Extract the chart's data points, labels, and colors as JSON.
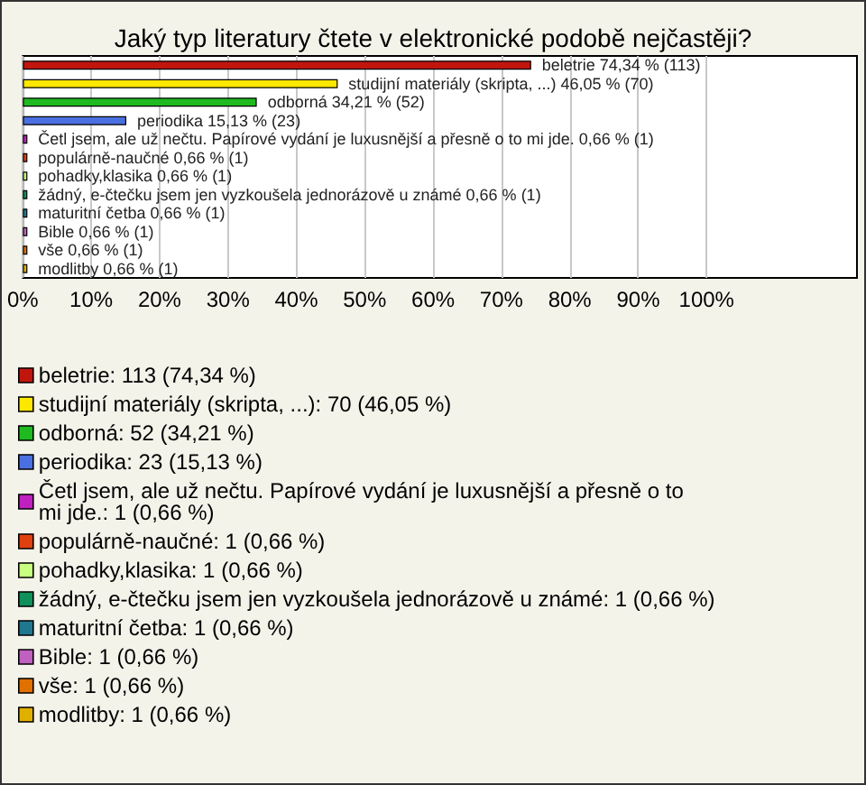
{
  "chart_data": {
    "type": "bar",
    "orientation": "horizontal",
    "stacked": true,
    "title": "Jaký typ literatury čtete v elektronické podobě nejčastěji?",
    "categories": [
      null,
      null,
      null,
      null,
      null,
      null,
      null,
      null,
      null,
      null,
      null,
      null
    ],
    "xlim": [
      0,
      122
    ],
    "xticks": [
      {
        "value": 0,
        "label": "0%"
      },
      {
        "value": 10,
        "label": "10%"
      },
      {
        "value": 20,
        "label": "20%"
      },
      {
        "value": 30,
        "label": "30%"
      },
      {
        "value": 40,
        "label": "40%"
      },
      {
        "value": 50,
        "label": "50%"
      },
      {
        "value": 60,
        "label": "60%"
      },
      {
        "value": 70,
        "label": "70%"
      },
      {
        "value": 80,
        "label": "80%"
      },
      {
        "value": 90,
        "label": "90%"
      },
      {
        "value": 100,
        "label": "100%"
      }
    ],
    "grid": "x",
    "legend": "bottom",
    "tick_labels": "x",
    "series": [
      {
        "name": "beletrie: 113 (74,34 %)",
        "color": "#c0160e",
        "values": [
          74.34,
          null,
          null,
          null,
          null,
          null,
          null,
          null,
          null,
          null,
          null,
          null
        ],
        "value_labels": [
          "beletrie 74,34 % (113)",
          null,
          null,
          null,
          null,
          null,
          null,
          null,
          null,
          null,
          null,
          null
        ]
      },
      {
        "name": "studijní materiály (skripta, ...): 70 (46,05 %)",
        "color": "#ffe800",
        "values": [
          null,
          46.05,
          null,
          null,
          null,
          null,
          null,
          null,
          null,
          null,
          null,
          null
        ],
        "value_labels": [
          null,
          "studijní materiály (skripta, ...) 46,05 % (70)",
          null,
          null,
          null,
          null,
          null,
          null,
          null,
          null,
          null,
          null
        ]
      },
      {
        "name": "odborná: 52 (34,21 %)",
        "color": "#1fba1f",
        "values": [
          null,
          null,
          34.21,
          null,
          null,
          null,
          null,
          null,
          null,
          null,
          null,
          null
        ],
        "value_labels": [
          null,
          null,
          "odborná 34,21 % (52)",
          null,
          null,
          null,
          null,
          null,
          null,
          null,
          null,
          null
        ]
      },
      {
        "name": "periodika: 23 (15,13 %)",
        "color": "#4a6fe0",
        "values": [
          null,
          null,
          null,
          15.13,
          null,
          null,
          null,
          null,
          null,
          null,
          null,
          null
        ],
        "value_labels": [
          null,
          null,
          null,
          "periodika 15,13 % (23)",
          null,
          null,
          null,
          null,
          null,
          null,
          null,
          null
        ]
      },
      {
        "name": "Četl jsem, ale už nečtu. Papírové vydání je luxusnější a přesně o to mi jde.: 1 (0,66 %)",
        "color": "#c020c0",
        "values": [
          null,
          null,
          null,
          null,
          0.66,
          null,
          null,
          null,
          null,
          null,
          null,
          null
        ],
        "value_labels": [
          null,
          null,
          null,
          null,
          "Četl jsem, ale už nečtu. Papírové vydání je luxusnější a přesně o to mi jde. 0,66 % (1)",
          null,
          null,
          null,
          null,
          null,
          null,
          null
        ]
      },
      {
        "name": "populárně-naučné: 1 (0,66 %)",
        "color": "#e04010",
        "values": [
          null,
          null,
          null,
          null,
          null,
          0.66,
          null,
          null,
          null,
          null,
          null,
          null
        ],
        "value_labels": [
          null,
          null,
          null,
          null,
          null,
          "populárně-naučné 0,66 % (1)",
          null,
          null,
          null,
          null,
          null,
          null
        ]
      },
      {
        "name": "pohadky,klasika: 1 (0,66 %)",
        "color": "#c8ff80",
        "values": [
          null,
          null,
          null,
          null,
          null,
          null,
          0.66,
          null,
          null,
          null,
          null,
          null
        ],
        "value_labels": [
          null,
          null,
          null,
          null,
          null,
          null,
          "pohadky,klasika 0,66 % (1)",
          null,
          null,
          null,
          null,
          null
        ]
      },
      {
        "name": "žádný, e-čtečku jsem jen vyzkoušela jednorázově u známé: 1 (0,66 %)",
        "color": "#10905a",
        "values": [
          null,
          null,
          null,
          null,
          null,
          null,
          null,
          0.66,
          null,
          null,
          null,
          null
        ],
        "value_labels": [
          null,
          null,
          null,
          null,
          null,
          null,
          null,
          "žádný, e-čtečku jsem jen vyzkoušela jednorázově u známé 0,66 % (1)",
          null,
          null,
          null,
          null
        ]
      },
      {
        "name": "maturitní četba: 1 (0,66 %)",
        "color": "#207890",
        "values": [
          null,
          null,
          null,
          null,
          null,
          null,
          null,
          null,
          0.66,
          null,
          null,
          null
        ],
        "value_labels": [
          null,
          null,
          null,
          null,
          null,
          null,
          null,
          null,
          "maturitní četba 0,66 % (1)",
          null,
          null,
          null
        ]
      },
      {
        "name": "Bible: 1 (0,66 %)",
        "color": "#c060c0",
        "values": [
          null,
          null,
          null,
          null,
          null,
          null,
          null,
          null,
          null,
          0.66,
          null,
          null
        ],
        "value_labels": [
          null,
          null,
          null,
          null,
          null,
          null,
          null,
          null,
          null,
          "Bible 0,66 % (1)",
          null,
          null
        ]
      },
      {
        "name": "vše: 1 (0,66 %)",
        "color": "#e07000",
        "values": [
          null,
          null,
          null,
          null,
          null,
          null,
          null,
          null,
          null,
          null,
          0.66,
          null
        ],
        "value_labels": [
          null,
          null,
          null,
          null,
          null,
          null,
          null,
          null,
          null,
          null,
          "vše 0,66 % (1)",
          null
        ]
      },
      {
        "name": "modlitby: 1 (0,66 %)",
        "color": "#e0b000",
        "values": [
          null,
          null,
          null,
          null,
          null,
          null,
          null,
          null,
          null,
          null,
          null,
          0.66
        ],
        "value_labels": [
          null,
          null,
          null,
          null,
          null,
          null,
          null,
          null,
          null,
          null,
          null,
          "modlitby 0,66 % (1)"
        ]
      }
    ]
  }
}
